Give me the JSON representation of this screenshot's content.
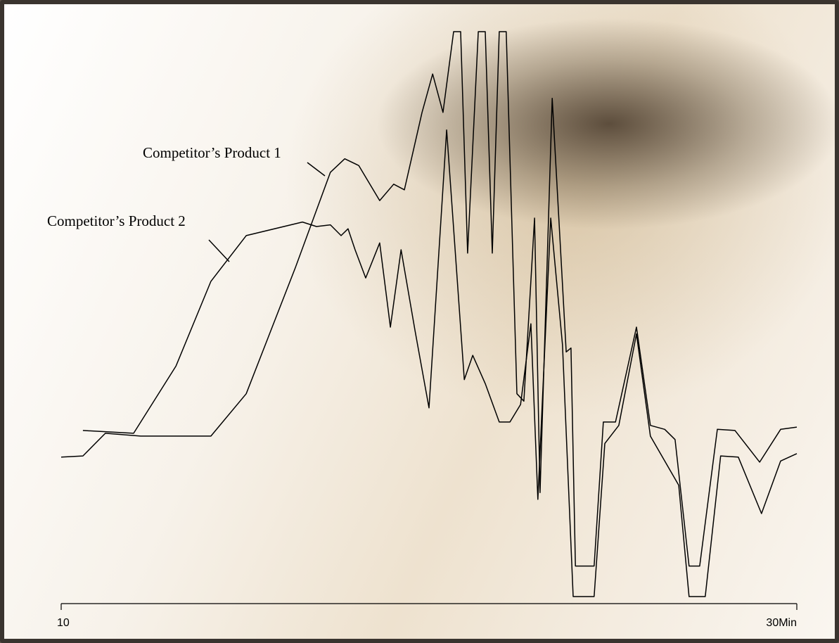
{
  "chart_data": {
    "type": "line",
    "xlim": [
      10,
      30
    ],
    "ylim": [
      0,
      100
    ],
    "xticks": [
      10,
      {
        "value": 30,
        "label": "30Min"
      }
    ],
    "series": [
      {
        "name": "Competitor’s Product 1",
        "color": "#000000",
        "x": [
          10,
          10.59,
          11.2,
          12.16,
          14.07,
          15.03,
          16.37,
          17.32,
          17.71,
          18.09,
          18.66,
          19.04,
          19.33,
          19.81,
          20.1,
          20.38,
          20.67,
          20.86,
          21.05,
          21.34,
          21.53,
          21.72,
          21.91,
          22.1,
          22.39,
          22.58,
          22.87,
          23.02,
          23.35,
          23.73,
          23.86,
          23.98,
          24.49,
          24.74,
          25.07,
          25.64,
          26.02,
          26.41,
          26.69,
          27.07,
          27.36,
          27.84,
          28.32,
          28.99,
          29.56,
          30
        ],
        "values": [
          24.7,
          24.9,
          28.9,
          28.4,
          28.4,
          35.9,
          58.3,
          75.1,
          77.5,
          76.3,
          70.1,
          73,
          72,
          85.7,
          92.5,
          85.7,
          100,
          100,
          60.8,
          100,
          100,
          60.8,
          100,
          100,
          35.9,
          34.6,
          67,
          18.4,
          88.2,
          43.3,
          44,
          5.4,
          5.4,
          30.9,
          30.9,
          47.7,
          30.3,
          29.6,
          27.8,
          5.4,
          5.4,
          29.6,
          29.4,
          23.8,
          29.6,
          30
        ]
      },
      {
        "name": "Competitor’s Product 2",
        "color": "#000000",
        "x": [
          10.59,
          11.97,
          13.12,
          14.07,
          15.03,
          16.56,
          16.94,
          17.32,
          17.61,
          17.8,
          17.99,
          18.28,
          18.66,
          18.95,
          19.24,
          19.62,
          20,
          20.48,
          20.96,
          21.19,
          21.53,
          21.91,
          22.2,
          22.49,
          22.77,
          22.96,
          23.31,
          23.63,
          23.92,
          24.49,
          24.78,
          25.16,
          25.64,
          26.02,
          26.41,
          26.79,
          27.07,
          27.51,
          27.93,
          28.41,
          29.04,
          29.56,
          30
        ],
        "values": [
          29.4,
          28.9,
          40.8,
          55.8,
          63.9,
          66.3,
          65.5,
          65.8,
          63.9,
          65.1,
          61.4,
          56.4,
          62.6,
          47.7,
          61.4,
          47.1,
          33.4,
          82.6,
          38.4,
          42.7,
          37.7,
          30.9,
          30.9,
          34,
          48.3,
          17.2,
          67,
          44.6,
          0,
          0,
          27.1,
          30.3,
          46.5,
          28.4,
          24,
          19.7,
          0,
          0,
          24.9,
          24.7,
          14.7,
          24,
          25.3
        ]
      }
    ]
  }
}
